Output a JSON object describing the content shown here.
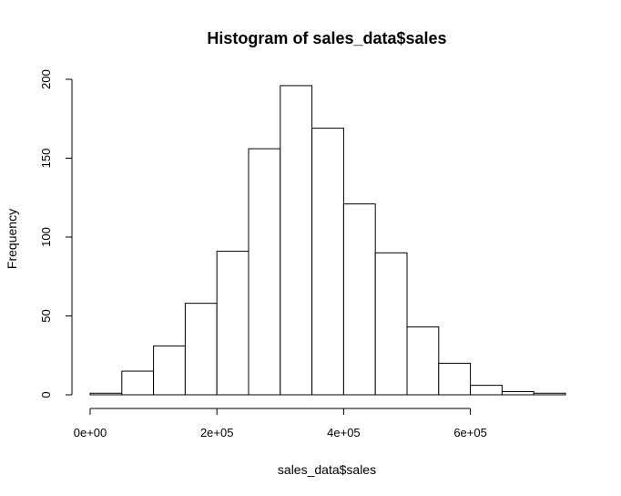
{
  "chart_data": {
    "type": "bar",
    "title": "Histogram of sales_data$sales",
    "xlabel": "sales_data$sales",
    "ylabel": "Frequency",
    "bin_width": 50000,
    "bins": [
      {
        "start": 0,
        "end": 50000,
        "count": 1
      },
      {
        "start": 50000,
        "end": 100000,
        "count": 15
      },
      {
        "start": 100000,
        "end": 150000,
        "count": 31
      },
      {
        "start": 150000,
        "end": 200000,
        "count": 58
      },
      {
        "start": 200000,
        "end": 250000,
        "count": 91
      },
      {
        "start": 250000,
        "end": 300000,
        "count": 156
      },
      {
        "start": 300000,
        "end": 350000,
        "count": 196
      },
      {
        "start": 350000,
        "end": 400000,
        "count": 169
      },
      {
        "start": 400000,
        "end": 450000,
        "count": 121
      },
      {
        "start": 450000,
        "end": 500000,
        "count": 90
      },
      {
        "start": 500000,
        "end": 550000,
        "count": 43
      },
      {
        "start": 550000,
        "end": 600000,
        "count": 20
      },
      {
        "start": 600000,
        "end": 650000,
        "count": 6
      },
      {
        "start": 650000,
        "end": 700000,
        "count": 2
      },
      {
        "start": 700000,
        "end": 750000,
        "count": 1
      }
    ],
    "xlim": [
      0,
      750000
    ],
    "ylim": [
      0,
      200
    ],
    "x_ticks": [
      {
        "value": 0,
        "label": "0e+00"
      },
      {
        "value": 200000,
        "label": "2e+05"
      },
      {
        "value": 400000,
        "label": "4e+05"
      },
      {
        "value": 600000,
        "label": "6e+05"
      }
    ],
    "y_ticks": [
      {
        "value": 0,
        "label": "0"
      },
      {
        "value": 50,
        "label": "50"
      },
      {
        "value": 100,
        "label": "100"
      },
      {
        "value": 150,
        "label": "150"
      },
      {
        "value": 200,
        "label": "200"
      }
    ],
    "grid": false,
    "legend": "none",
    "bar_fill": "#ffffff",
    "bar_stroke": "#000000"
  }
}
